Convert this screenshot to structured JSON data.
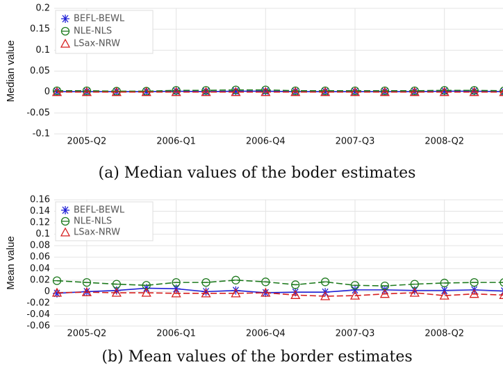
{
  "chart_data": [
    {
      "type": "line",
      "caption": "(a) Median values of the boder estimates",
      "y_label": "Median value",
      "categories": [
        null,
        "2005-Q2",
        null,
        null,
        "2006-Q1",
        null,
        null,
        "2006-Q4",
        null,
        null,
        "2007-Q3",
        null,
        null,
        "2008-Q2",
        null,
        null
      ],
      "ylim": [
        -0.1,
        0.2
      ],
      "yticks": [
        0.2,
        0.15,
        0.1,
        0.05,
        0,
        -0.05,
        -0.1
      ],
      "grid": true,
      "legend": "upper-left",
      "series": [
        {
          "name": "BEFL-BEWL",
          "color": "#1f1fd6",
          "marker": "asterisk",
          "values": [
            0.001,
            0.001,
            0.001,
            0.001,
            0.002,
            0.001,
            0.002,
            0.002,
            0.001,
            0.001,
            0.001,
            0.001,
            0.001,
            0.002,
            0.002,
            0.001
          ]
        },
        {
          "name": "NLE-NLS",
          "color": "#1e7a1e",
          "marker": "circle",
          "values": [
            0.003,
            0.003,
            0.002,
            0.002,
            0.004,
            0.004,
            0.005,
            0.005,
            0.003,
            0.003,
            0.003,
            0.003,
            0.003,
            0.004,
            0.004,
            0.003
          ]
        },
        {
          "name": "LSax-NRW",
          "color": "#d61f1f",
          "marker": "triangle",
          "values": [
            0,
            0,
            0,
            0,
            0,
            0,
            0,
            0,
            0,
            0,
            0,
            0,
            0,
            0,
            0,
            0
          ]
        }
      ]
    },
    {
      "type": "line",
      "caption": "(b) Mean values of the border estimates",
      "y_label": "Mean value",
      "categories": [
        null,
        "2005-Q2",
        null,
        null,
        "2006-Q1",
        null,
        null,
        "2006-Q4",
        null,
        null,
        "2007-Q3",
        null,
        null,
        "2008-Q2",
        null,
        null
      ],
      "ylim": [
        -0.06,
        0.16
      ],
      "yticks": [
        0.16,
        0.14,
        0.12,
        0.1,
        0.08,
        0.06,
        0.04,
        0.02,
        0,
        -0.02,
        -0.04,
        -0.06
      ],
      "grid": true,
      "legend": "upper-left",
      "series": [
        {
          "name": "BEFL-BEWL",
          "color": "#1f1fd6",
          "marker": "asterisk",
          "values": [
            -0.003,
            0,
            0.002,
            0.006,
            0.005,
            0,
            0.002,
            -0.002,
            -0.001,
            -0.001,
            0.003,
            0.003,
            0.002,
            0.002,
            0.003,
            0.001
          ]
        },
        {
          "name": "NLE-NLS",
          "color": "#1e7a1e",
          "marker": "circle",
          "values": [
            0.019,
            0.016,
            0.013,
            0.011,
            0.016,
            0.016,
            0.02,
            0.017,
            0.012,
            0.017,
            0.011,
            0.01,
            0.013,
            0.015,
            0.016,
            0.016
          ]
        },
        {
          "name": "LSax-NRW",
          "color": "#d61f1f",
          "marker": "triangle",
          "values": [
            -0.002,
            -0.001,
            -0.002,
            -0.002,
            -0.003,
            -0.003,
            -0.003,
            -0.002,
            -0.006,
            -0.008,
            -0.007,
            -0.004,
            -0.002,
            -0.007,
            -0.004,
            -0.006
          ]
        }
      ]
    }
  ]
}
